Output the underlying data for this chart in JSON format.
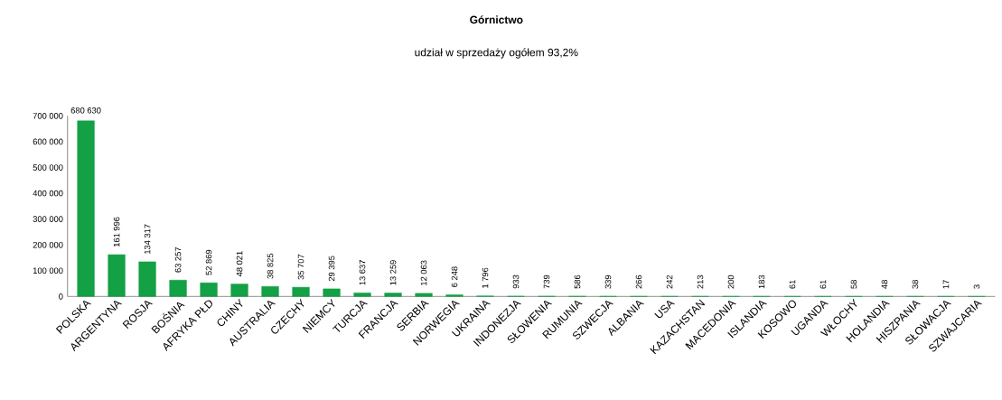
{
  "chart_data": {
    "type": "bar",
    "title": "Górnictwo",
    "subtitle": "udział  w sprzedaży ogółem 93,2%",
    "categories": [
      "POLSKA",
      "ARGENTYNA",
      "ROSJA",
      "BOŚNIA",
      "AFRYKA PŁD",
      "CHINY",
      "AUSTRALIA",
      "CZECHY",
      "NIEMCY",
      "TURCJA",
      "FRANCJA",
      "SERBIA",
      "NORWEGIA",
      "UKRAINA",
      "INDONEZJA",
      "SŁOWENIA",
      "RUMUNIA",
      "SZWECJA",
      "ALBANIA",
      "USA",
      "KAZACHSTAN",
      "MACEDONIA",
      "ISLANDIA",
      "KOSOWO",
      "UGANDA",
      "WŁOCHY",
      "HOLANDIA",
      "HISZPANIA",
      "SŁOWACJA",
      "SZWAJCARIA"
    ],
    "values": [
      680630,
      161996,
      134317,
      63257,
      52869,
      48021,
      38825,
      35707,
      29395,
      13637,
      13259,
      12063,
      6248,
      1796,
      933,
      739,
      586,
      339,
      266,
      242,
      213,
      200,
      183,
      61,
      61,
      58,
      48,
      38,
      17,
      3
    ],
    "value_labels": [
      "680 630",
      "161 996",
      "134 317",
      "63 257",
      "52 869",
      "48 021",
      "38 825",
      "35 707",
      "29 395",
      "13 637",
      "13 259",
      "12 063",
      "6 248",
      "1 796",
      "933",
      "739",
      "586",
      "339",
      "266",
      "242",
      "213",
      "200",
      "183",
      "61",
      "61",
      "58",
      "48",
      "38",
      "17",
      "3"
    ],
    "color": "#14a045",
    "ylim": [
      0,
      700000
    ],
    "yticks": [
      0,
      {
        "value": 100000,
        "label": "100 000"
      },
      {
        "value": 200000,
        "label": "200 000"
      },
      {
        "value": 300000,
        "label": "300 000"
      },
      {
        "value": 400000,
        "label": "400 000"
      },
      {
        "value": 500000,
        "label": "500 000"
      },
      {
        "value": 600000,
        "label": "600 000"
      },
      {
        "value": 700000,
        "label": "700 000"
      }
    ],
    "grid": false
  }
}
